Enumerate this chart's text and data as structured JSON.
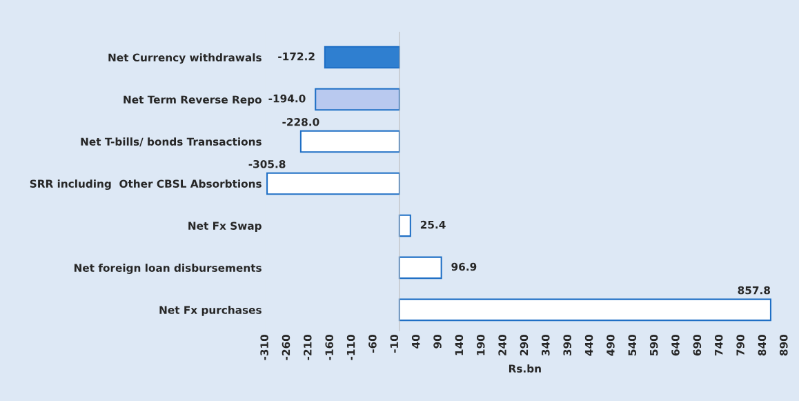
{
  "chart_data": {
    "type": "bar",
    "orientation": "horizontal",
    "xlabel": "Rs.bn",
    "categories": [
      "Net Currency withdrawals",
      "Net Term Reverse Repo",
      "Net T-bills/ bonds Transactions",
      "SRR including  Other CBSL Absorbtions",
      "Net Fx Swap",
      "Net foreign loan disbursements",
      "Net Fx purchases"
    ],
    "values": [
      -172.2,
      -194.0,
      -228.0,
      -305.8,
      25.4,
      96.9,
      857.8
    ],
    "value_labels": [
      "-172.2",
      "-194.0",
      "-228.0",
      "-305.8",
      "25.4",
      "96.9",
      "857.8"
    ],
    "colors": [
      "#2f7fd0",
      "#b9c9ef",
      "#ffffff",
      "#ffffff",
      "#ffffff",
      "#ffffff",
      "#ffffff"
    ],
    "xlim": [
      -310,
      890
    ],
    "xticks": [
      -310,
      -260,
      -210,
      -160,
      -110,
      -60,
      -10,
      40,
      90,
      140,
      190,
      240,
      290,
      340,
      390,
      440,
      490,
      540,
      590,
      640,
      690,
      740,
      790,
      840,
      890
    ],
    "grid": false
  }
}
